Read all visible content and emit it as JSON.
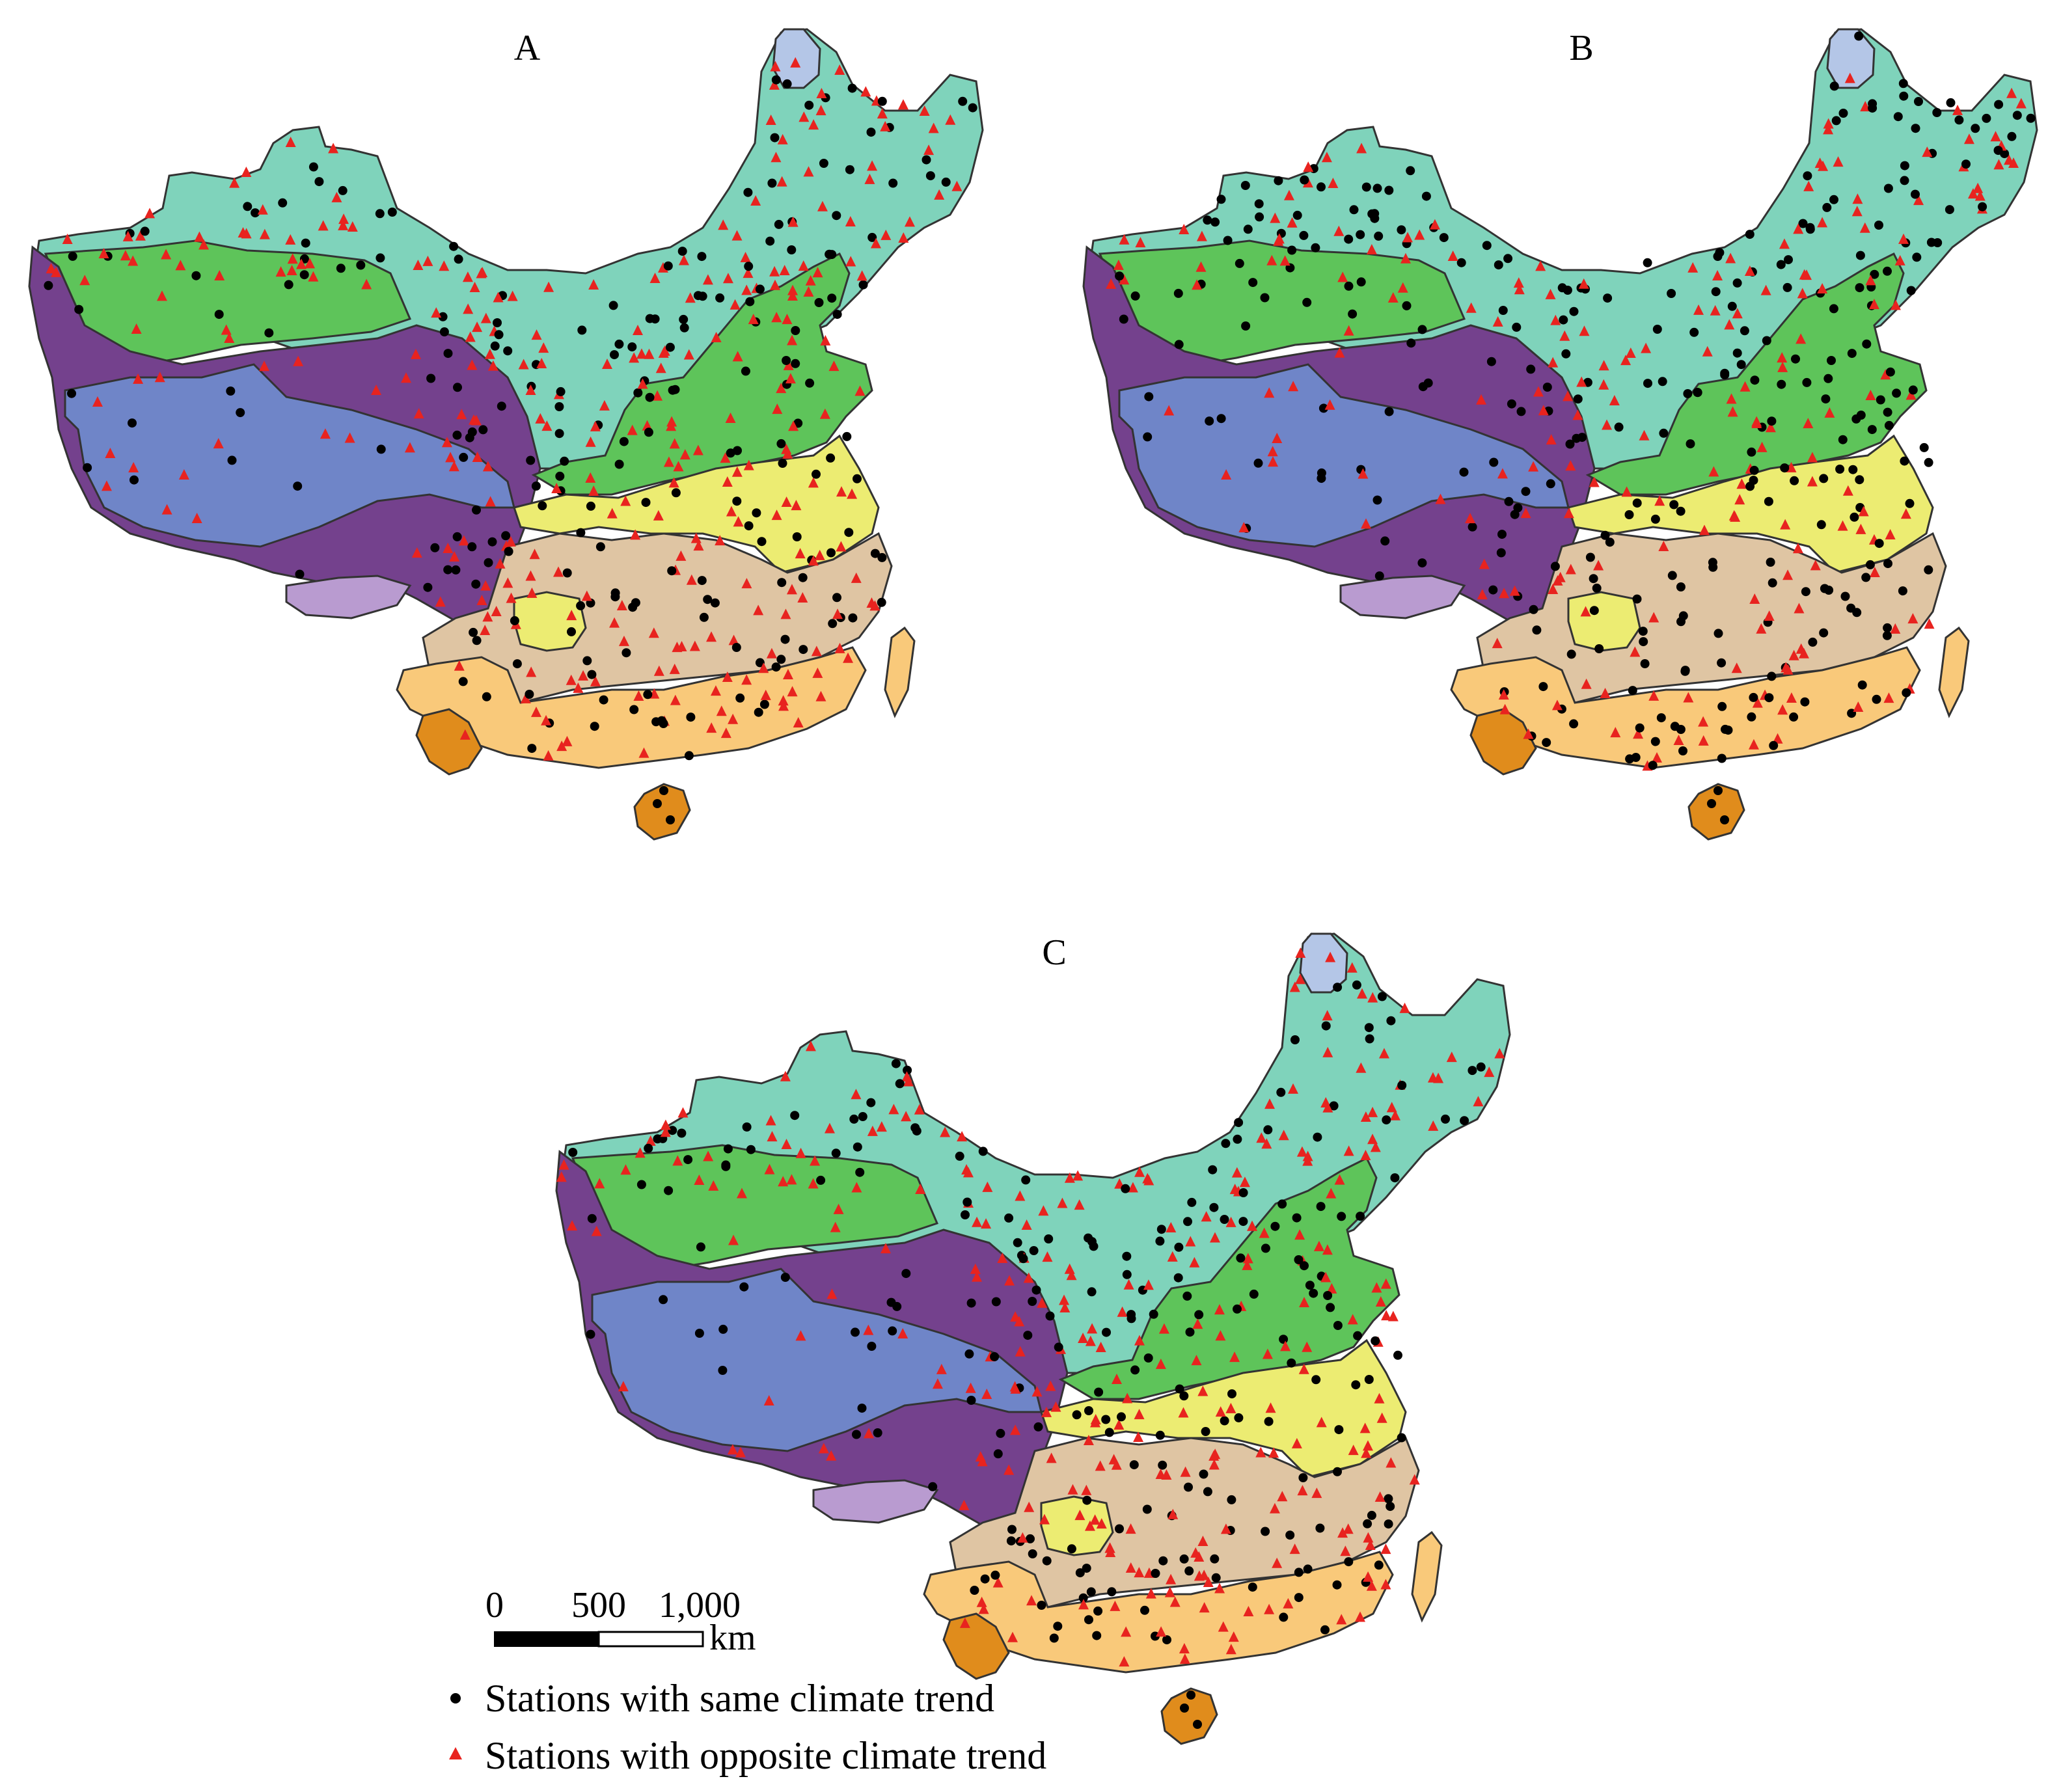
{
  "panels": [
    {
      "label": "A",
      "same_fraction": 0.45
    },
    {
      "label": "B",
      "same_fraction": 0.55
    },
    {
      "label": "C",
      "same_fraction": 0.4
    }
  ],
  "scale_bar": {
    "tick_0": "0",
    "tick_500": "500",
    "tick_1000": "1,000",
    "unit": "km"
  },
  "legend": {
    "same_label": "Stations with same climate trend",
    "opposite_label": "Stations with opposite climate trend",
    "same_color": "#000000",
    "opposite_color": "#e8231f"
  },
  "zone_colors": {
    "temperate_steppe": "#7fd3bb",
    "temperate_desert": "#5ec45a",
    "plateau_subfrigid": "#6f85c8",
    "plateau_temperate": "#74418d",
    "plateau_tropical": "#b99bd0",
    "cold_temperate": "#b4c6e7",
    "warm_temperate": "#5ec45a",
    "north_subtropical": "#ecec72",
    "mid_subtropical": "#dfc5a3",
    "south_subtropical": "#f9c97a",
    "tropical": "#e08c1c"
  }
}
